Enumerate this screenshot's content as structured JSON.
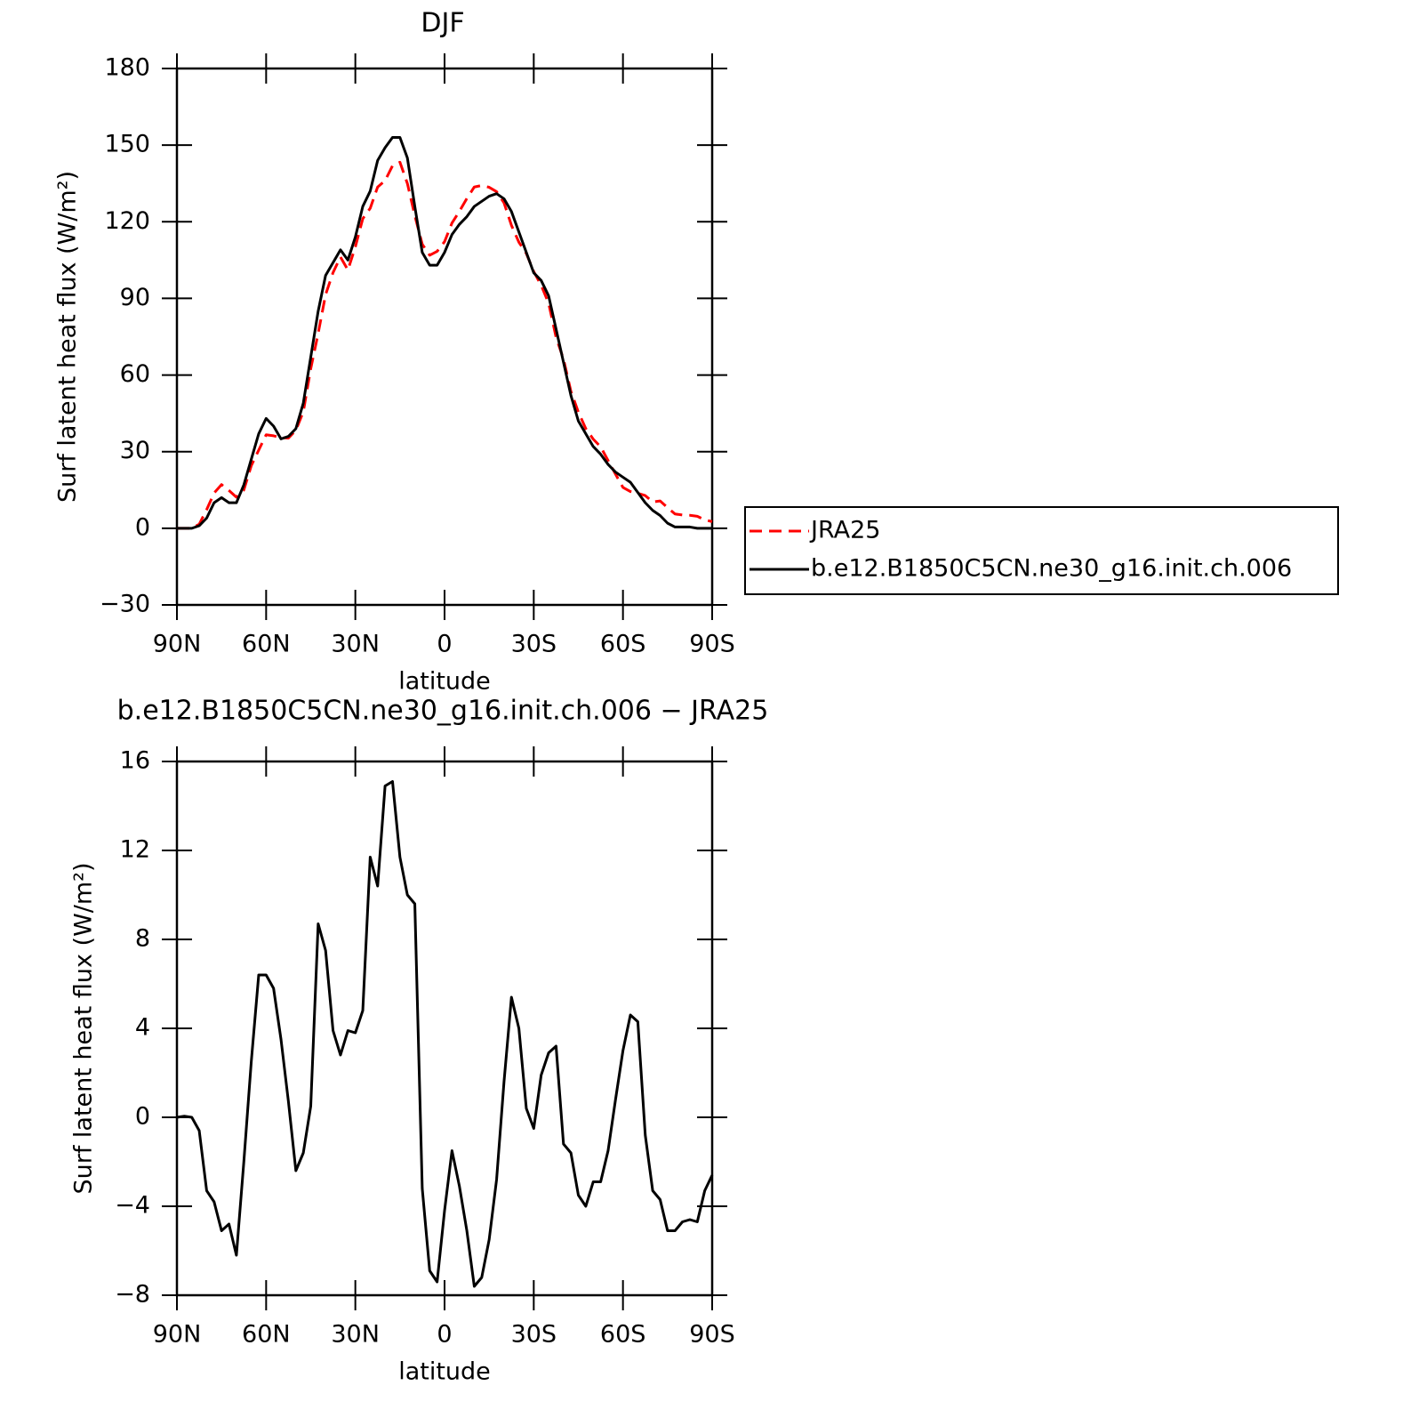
{
  "chart_data": [
    {
      "type": "line",
      "title": "DJF",
      "xlabel": "latitude",
      "ylabel": "Surf latent heat flux (W/m²)",
      "x": [
        90,
        87.5,
        85,
        82.5,
        80,
        77.5,
        75,
        72.5,
        70,
        67.5,
        65,
        62.5,
        60,
        57.5,
        55,
        52.5,
        50,
        47.5,
        45,
        42.5,
        40,
        37.5,
        35,
        32.5,
        30,
        27.5,
        25,
        22.5,
        20,
        17.5,
        15,
        12.5,
        10,
        7.5,
        5,
        2.5,
        0,
        -2.5,
        -5,
        -7.5,
        -10,
        -12.5,
        -15,
        -17.5,
        -20,
        -22.5,
        -25,
        -27.5,
        -30,
        -32.5,
        -35,
        -37.5,
        -40,
        -42.5,
        -45,
        -47.5,
        -50,
        -52.5,
        -55,
        -57.5,
        -60,
        -62.5,
        -65,
        -67.5,
        -70,
        -72.5,
        -75,
        -77.5,
        -80,
        -82.5,
        -85,
        -87.5,
        -90
      ],
      "series": [
        {
          "name": "JRA25",
          "color": "#ff0000",
          "dashed": true,
          "values": [
            0,
            0,
            0,
            1.6,
            7.3,
            13.8,
            17.1,
            14.8,
            12.2,
            15,
            24.5,
            30.6,
            36.6,
            36.2,
            35.5,
            35.3,
            38.4,
            45.6,
            62.5,
            76.3,
            91.5,
            100.1,
            106.2,
            101.1,
            110.2,
            121.2,
            125.3,
            133.6,
            136.1,
            141.9,
            143.3,
            135,
            122.4,
            111.2,
            106.9,
            108.4,
            112.2,
            119.5,
            124.1,
            129.1,
            133.6,
            134.2,
            133.5,
            131.8,
            127.4,
            118.6,
            112,
            107.6,
            100.5,
            95.1,
            88.1,
            74.8,
            66.2,
            53.6,
            45.5,
            39,
            34.9,
            31.9,
            26.5,
            21.2,
            16,
            14.4,
            13.7,
            12.8,
            10.3,
            10.7,
            8.1,
            5.6,
            5.2,
            5.1,
            4.7,
            3.3,
            2.6
          ]
        },
        {
          "name": "b.e12.B1850C5CN.ne30_g16.init.ch.006",
          "color": "#000000",
          "dashed": false,
          "values": [
            0,
            0,
            0,
            1,
            4,
            10,
            12,
            10,
            10,
            17,
            27,
            37,
            43,
            40,
            35,
            36,
            39,
            49,
            67,
            85,
            99,
            104,
            109,
            105,
            114,
            126,
            132,
            144,
            149,
            153,
            153,
            145,
            126,
            108,
            103,
            103,
            108,
            115,
            119,
            122,
            126,
            128,
            130,
            131,
            129,
            124,
            116,
            108,
            100,
            97,
            91,
            78,
            65,
            52,
            42,
            37,
            32,
            29,
            25,
            22,
            20,
            18,
            14,
            10,
            7,
            5,
            2,
            0.5,
            0.5,
            0.5,
            0,
            0,
            0
          ]
        }
      ],
      "xlim": [
        90,
        -90
      ],
      "xticks": [
        {
          "value": 90,
          "label": "90N"
        },
        {
          "value": 60,
          "label": "60N"
        },
        {
          "value": 30,
          "label": "30N"
        },
        0,
        {
          "value": -30,
          "label": "30S"
        },
        {
          "value": -60,
          "label": "60S"
        },
        {
          "value": -90,
          "label": "90S"
        }
      ],
      "ylim": [
        -30,
        180
      ],
      "yticks": [
        {
          "value": -30,
          "label": "−30"
        },
        0,
        30,
        60,
        90,
        120,
        150,
        180
      ],
      "legend": "right"
    },
    {
      "type": "line",
      "title": "b.e12.B1850C5CN.ne30_g16.init.ch.006 − JRA25",
      "xlabel": "latitude",
      "ylabel": "Surf latent heat flux (W/m²)",
      "x": [
        90,
        87.5,
        85,
        82.5,
        80,
        77.5,
        75,
        72.5,
        70,
        67.5,
        65,
        62.5,
        60,
        57.5,
        55,
        52.5,
        50,
        47.5,
        45,
        42.5,
        40,
        37.5,
        35,
        32.5,
        30,
        27.5,
        25,
        22.5,
        20,
        17.5,
        15,
        12.5,
        10,
        7.5,
        5,
        2.5,
        0,
        -2.5,
        -5,
        -7.5,
        -10,
        -12.5,
        -15,
        -17.5,
        -20,
        -22.5,
        -25,
        -27.5,
        -30,
        -32.5,
        -35,
        -37.5,
        -40,
        -42.5,
        -45,
        -47.5,
        -50,
        -52.5,
        -55,
        -57.5,
        -60,
        -62.5,
        -65,
        -67.5,
        -70,
        -72.5,
        -75,
        -77.5,
        -80,
        -82.5,
        -85,
        -87.5,
        -90
      ],
      "series": [
        {
          "color": "#000000",
          "dashed": false,
          "values": [
            0,
            0.05,
            0,
            -0.6,
            -3.3,
            -3.8,
            -5.1,
            -4.8,
            -6.2,
            -2,
            2.5,
            6.4,
            6.4,
            5.8,
            3.5,
            0.7,
            -2.4,
            -1.6,
            0.5,
            8.7,
            7.5,
            3.9,
            2.8,
            3.9,
            3.8,
            4.8,
            11.7,
            10.4,
            14.9,
            15.1,
            11.7,
            10,
            9.6,
            -3.2,
            -6.9,
            -7.4,
            -4.2,
            -1.5,
            -3.1,
            -5.1,
            -7.6,
            -7.2,
            -5.5,
            -2.8,
            1.6,
            5.4,
            4,
            0.4,
            -0.5,
            1.9,
            2.9,
            3.2,
            -1.2,
            -1.6,
            -3.5,
            -4,
            -2.9,
            -2.9,
            -1.5,
            0.8,
            3,
            4.6,
            4.3,
            -0.8,
            -3.3,
            -3.7,
            -5.1,
            -5.1,
            -4.7,
            -4.6,
            -4.7,
            -3.3,
            -2.6
          ]
        }
      ],
      "xlim": [
        90,
        -90
      ],
      "xticks": [
        {
          "value": 90,
          "label": "90N"
        },
        {
          "value": 60,
          "label": "60N"
        },
        {
          "value": 30,
          "label": "30N"
        },
        0,
        {
          "value": -30,
          "label": "30S"
        },
        {
          "value": -60,
          "label": "60S"
        },
        {
          "value": -90,
          "label": "90S"
        }
      ],
      "ylim": [
        -8,
        16
      ],
      "yticks": [
        {
          "value": -8,
          "label": "−8"
        },
        {
          "value": -4,
          "label": "−4"
        },
        0,
        4,
        8,
        12,
        16
      ]
    }
  ]
}
